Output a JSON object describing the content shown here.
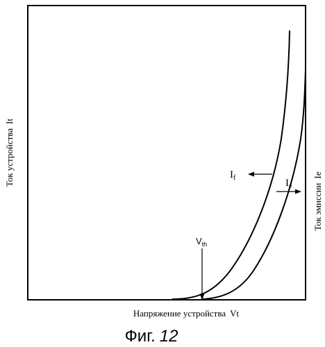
{
  "figure": {
    "caption_prefix": "Фиг.",
    "caption_number": "12",
    "y_left_label": "Ток устройства",
    "y_left_symbol": "It",
    "y_right_label": "Ток эмиссии",
    "y_right_symbol": "Ie",
    "x_label": "Напряжение устройства",
    "x_symbol": "Vt",
    "curves": {
      "device_current_label_main": "I",
      "device_current_label_sub": "f",
      "emission_current_label_main": "I",
      "emission_current_label_sub": "e"
    },
    "threshold_label_main": "V",
    "threshold_label_sub": "th"
  }
}
